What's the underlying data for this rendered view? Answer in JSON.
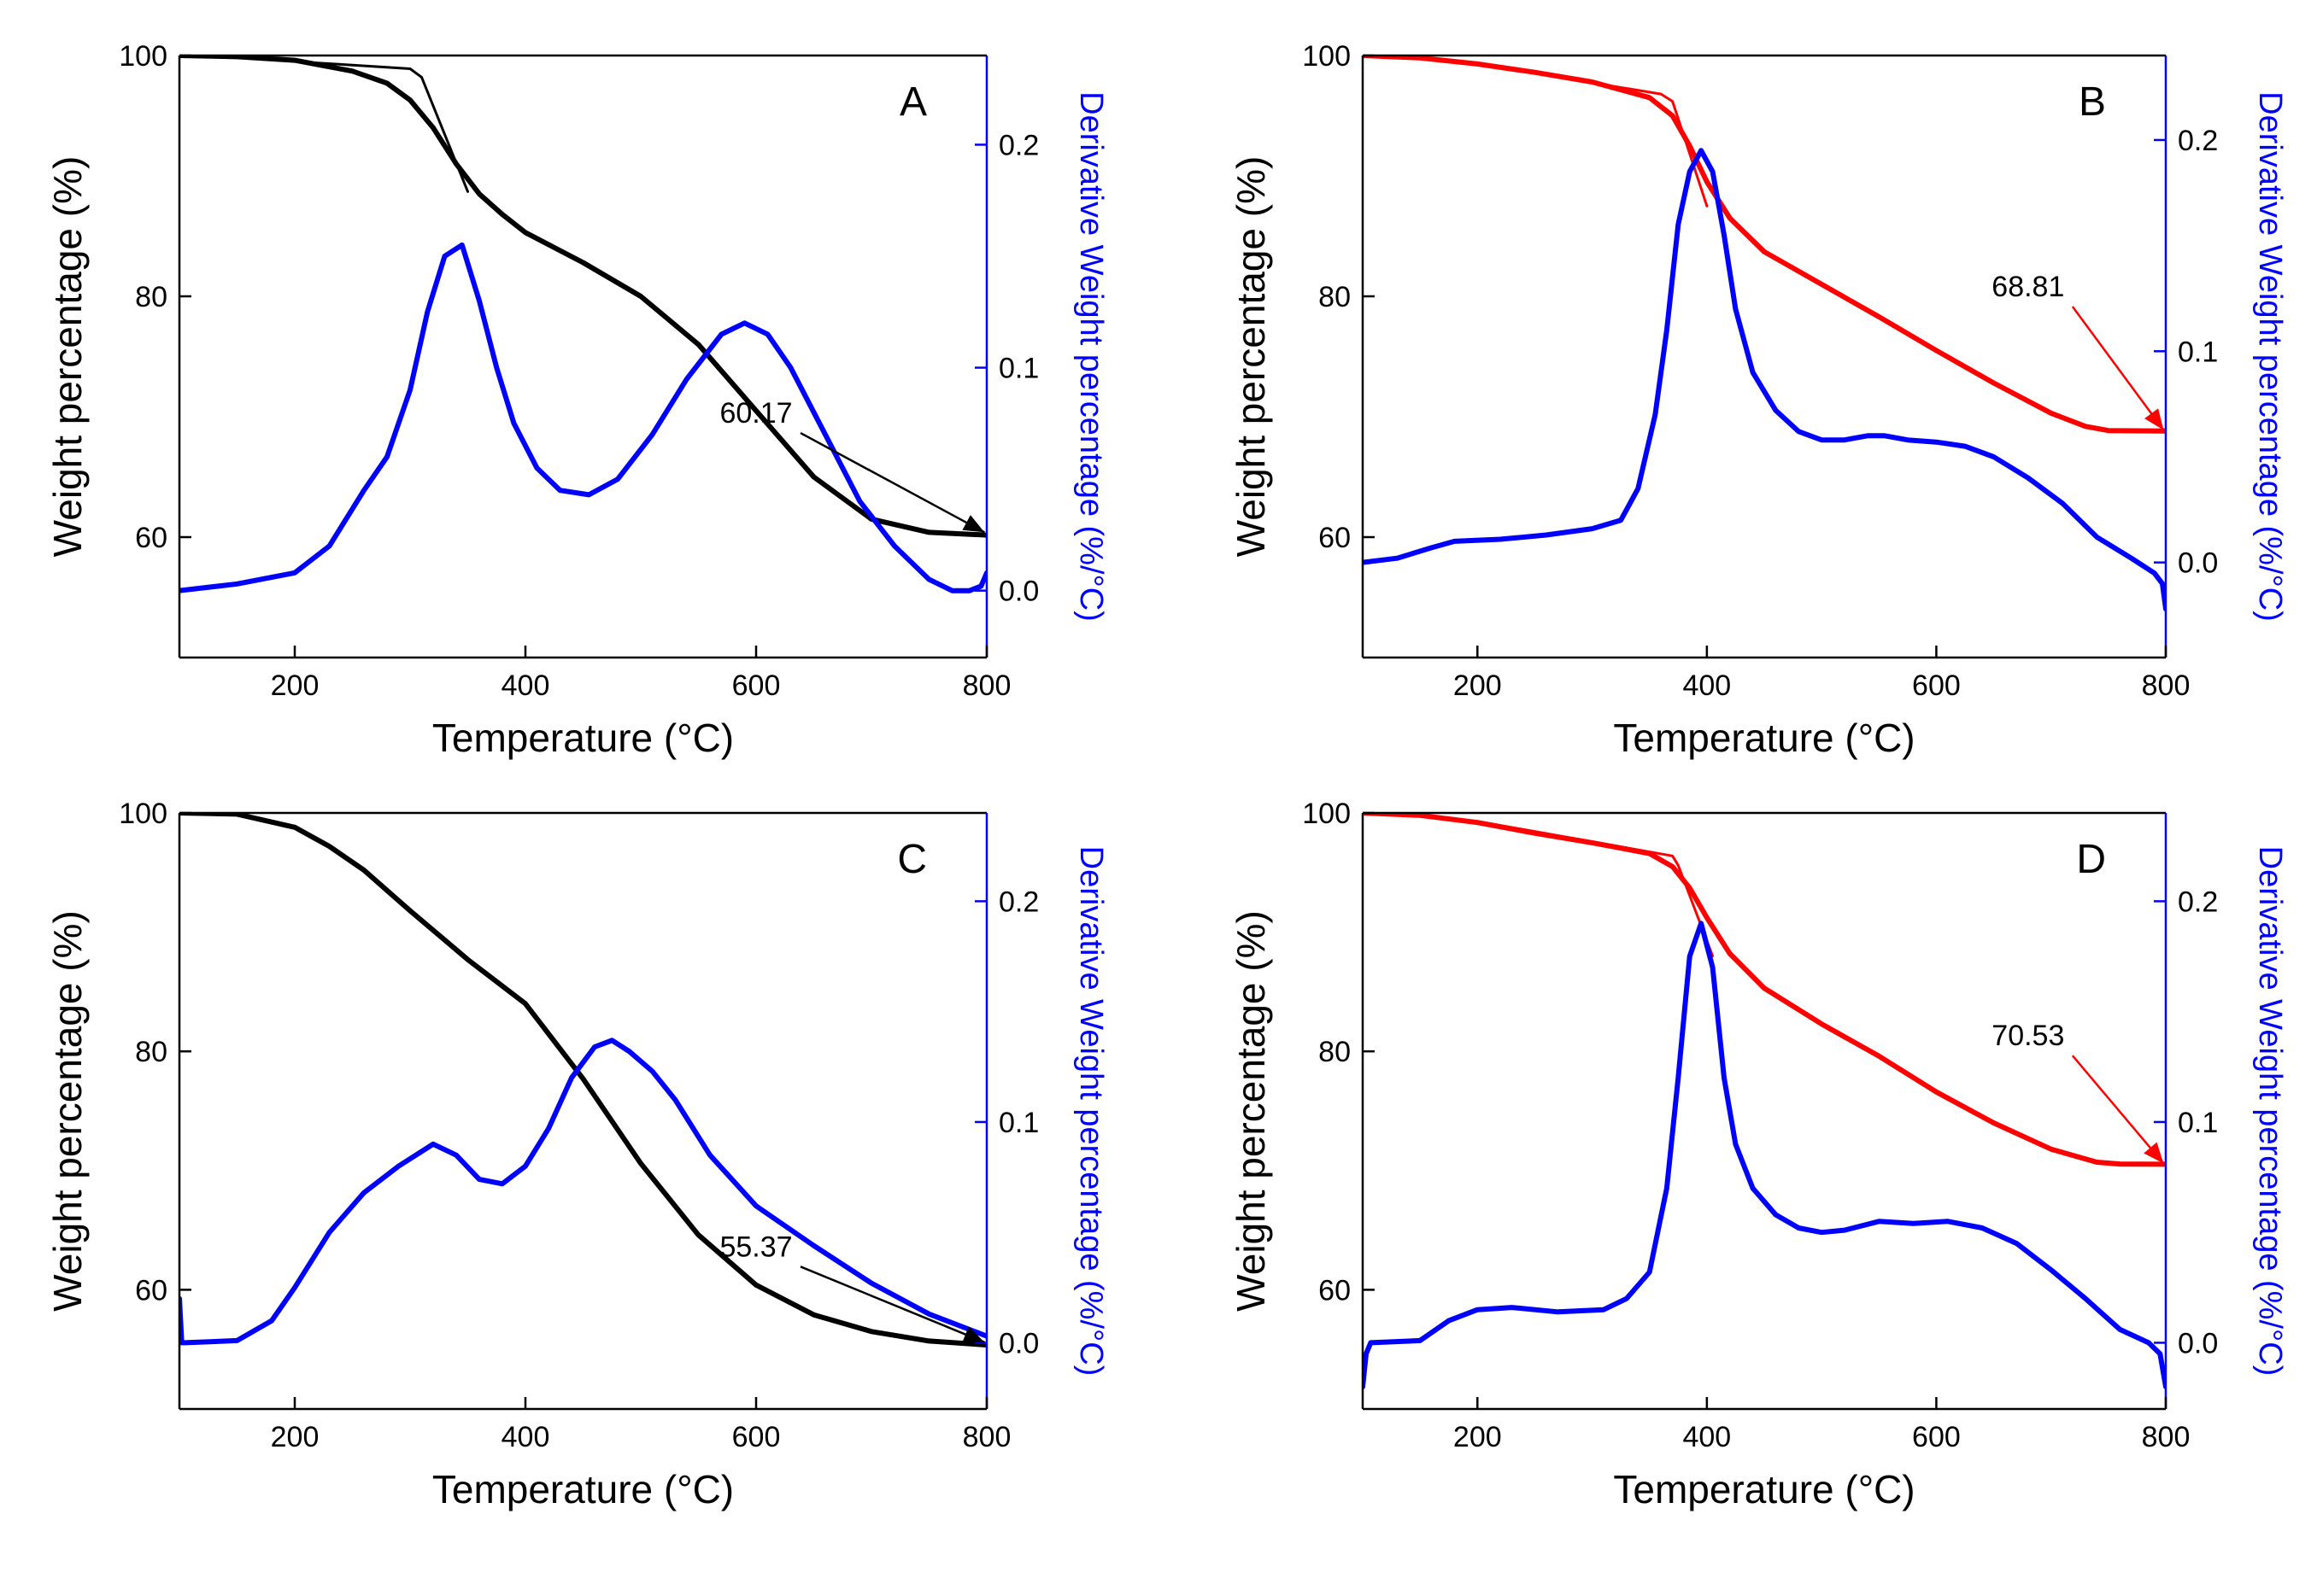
{
  "colors": {
    "weight_black": "#000000",
    "weight_red": "#ff0000",
    "derivative": "#0000ff",
    "axis": "#000000"
  },
  "chart_data": [
    {
      "panel": "A",
      "type": "line",
      "label": "A",
      "xlabel": "Temperature (°C)",
      "ylabel": "Weight percentage (%)",
      "y2label": "Derivative Weight percentage (%/°C)",
      "xlim": [
        100,
        800
      ],
      "ylim": [
        50,
        100
      ],
      "y2lim": [
        -0.03,
        0.24
      ],
      "xticks": [
        "200",
        "400",
        "600",
        "800"
      ],
      "yticks": [
        "60",
        "80",
        "100"
      ],
      "y2ticks": [
        "0.0",
        "0.1",
        "0.2"
      ],
      "xtick_values": [
        200,
        400,
        600,
        800
      ],
      "ytick_values": [
        60,
        80,
        100
      ],
      "y2tick_values": [
        0,
        0.1,
        0.2
      ],
      "weight_color": "#000000",
      "series": [
        {
          "name": "Weight",
          "axis": "left",
          "color": "#000000",
          "x": [
            100,
            150,
            200,
            250,
            280,
            300,
            320,
            340,
            360,
            380,
            400,
            450,
            500,
            550,
            600,
            650,
            700,
            750,
            800
          ],
          "y": [
            100,
            99.9,
            99.6,
            98.7,
            97.7,
            96.3,
            94,
            91,
            88.5,
            86.8,
            85.3,
            82.8,
            80,
            76,
            70.5,
            65,
            61.5,
            60.4,
            60.17
          ]
        },
        {
          "name": "Onset tangent",
          "axis": "left",
          "color": "#000000",
          "x": [
            200,
            300,
            310,
            350
          ],
          "y": [
            99.5,
            98.9,
            98.2,
            88.7
          ]
        },
        {
          "name": "Derivative",
          "axis": "right",
          "color": "#0000ff",
          "x": [
            100,
            150,
            200,
            230,
            260,
            280,
            300,
            315,
            330,
            345,
            360,
            375,
            390,
            410,
            430,
            455,
            480,
            510,
            540,
            570,
            590,
            610,
            630,
            660,
            690,
            720,
            750,
            770,
            785,
            795,
            800
          ],
          "y": [
            0.0,
            0.003,
            0.008,
            0.02,
            0.045,
            0.06,
            0.09,
            0.125,
            0.15,
            0.155,
            0.13,
            0.1,
            0.075,
            0.055,
            0.045,
            0.043,
            0.05,
            0.07,
            0.095,
            0.115,
            0.12,
            0.115,
            0.1,
            0.07,
            0.04,
            0.02,
            0.005,
            0.0,
            0.0,
            0.002,
            0.008
          ]
        }
      ],
      "annotation": {
        "text": "60.17",
        "tx": 600,
        "ty": 69.5,
        "ax": 798,
        "ay": 60.4,
        "color": "#000000"
      }
    },
    {
      "panel": "B",
      "type": "line",
      "label": "B",
      "xlabel": "Temperature (°C)",
      "ylabel": "Weight percentage (%)",
      "y2label": "Derivative Weight percentage (%/°C)",
      "xlim": [
        100,
        800
      ],
      "ylim": [
        50,
        100
      ],
      "y2lim": [
        -0.045,
        0.24
      ],
      "xticks": [
        "200",
        "400",
        "600",
        "800"
      ],
      "yticks": [
        "60",
        "80",
        "100"
      ],
      "y2ticks": [
        "0.0",
        "0.1",
        "0.2"
      ],
      "xtick_values": [
        200,
        400,
        600,
        800
      ],
      "ytick_values": [
        60,
        80,
        100
      ],
      "y2tick_values": [
        0,
        0.1,
        0.2
      ],
      "weight_color": "#ff0000",
      "series": [
        {
          "name": "Weight",
          "axis": "left",
          "color": "#ff0000",
          "x": [
            100,
            150,
            200,
            250,
            300,
            350,
            370,
            385,
            400,
            420,
            450,
            500,
            550,
            600,
            650,
            700,
            730,
            750,
            800
          ],
          "y": [
            100,
            99.8,
            99.3,
            98.6,
            97.8,
            96.5,
            95,
            92.5,
            89.5,
            86.5,
            83.7,
            81,
            78.3,
            75.5,
            72.8,
            70.3,
            69.2,
            68.85,
            68.81
          ]
        },
        {
          "name": "Onset tangent",
          "axis": "left",
          "color": "#ff0000",
          "x": [
            200,
            360,
            370,
            400
          ],
          "y": [
            99.3,
            96.8,
            96.2,
            87.5
          ]
        },
        {
          "name": "Derivative",
          "axis": "right",
          "color": "#0000ff",
          "x": [
            100,
            130,
            160,
            180,
            220,
            260,
            300,
            325,
            340,
            355,
            365,
            375,
            385,
            395,
            405,
            415,
            425,
            440,
            460,
            480,
            500,
            520,
            540,
            555,
            575,
            600,
            625,
            650,
            680,
            710,
            740,
            770,
            790,
            797,
            800
          ],
          "y": [
            0.0,
            0.002,
            0.007,
            0.01,
            0.011,
            0.013,
            0.016,
            0.02,
            0.035,
            0.07,
            0.11,
            0.16,
            0.185,
            0.195,
            0.185,
            0.155,
            0.12,
            0.09,
            0.072,
            0.062,
            0.058,
            0.058,
            0.06,
            0.06,
            0.058,
            0.057,
            0.055,
            0.05,
            0.04,
            0.028,
            0.012,
            0.002,
            -0.005,
            -0.01,
            -0.022
          ]
        }
      ],
      "annotation": {
        "text": "68.81",
        "tx": 680,
        "ty": 80,
        "ax": 798,
        "ay": 68.9,
        "color": "#ff0000"
      }
    },
    {
      "panel": "C",
      "type": "line",
      "label": "C",
      "xlabel": "Temperature (°C)",
      "ylabel": "Weight percentage (%)",
      "y2label": "Derivative Weight percentage (%/°C)",
      "xlim": [
        100,
        800
      ],
      "ylim": [
        50,
        100
      ],
      "y2lim": [
        -0.03,
        0.24
      ],
      "xticks": [
        "200",
        "400",
        "600",
        "800"
      ],
      "yticks": [
        "60",
        "80",
        "100"
      ],
      "y2ticks": [
        "0.0",
        "0.1",
        "0.2"
      ],
      "xtick_values": [
        200,
        400,
        600,
        800
      ],
      "ytick_values": [
        60,
        80,
        100
      ],
      "y2tick_values": [
        0,
        0.1,
        0.2
      ],
      "weight_color": "#000000",
      "series": [
        {
          "name": "Weight",
          "axis": "left",
          "color": "#000000",
          "x": [
            100,
            150,
            200,
            230,
            260,
            300,
            350,
            400,
            450,
            500,
            550,
            600,
            650,
            700,
            750,
            800
          ],
          "y": [
            100,
            99.9,
            98.8,
            97.2,
            95.2,
            91.8,
            87.7,
            84,
            77.7,
            70.6,
            64.6,
            60.4,
            57.9,
            56.5,
            55.7,
            55.37
          ]
        },
        {
          "name": "Derivative",
          "axis": "right",
          "color": "#0000ff",
          "x": [
            100,
            102,
            105,
            150,
            180,
            200,
            230,
            260,
            290,
            320,
            340,
            360,
            380,
            400,
            420,
            440,
            460,
            475,
            490,
            510,
            530,
            560,
            600,
            650,
            700,
            750,
            790,
            800
          ],
          "y": [
            0.02,
            0.0,
            0.0,
            0.001,
            0.01,
            0.025,
            0.05,
            0.068,
            0.08,
            0.09,
            0.085,
            0.074,
            0.072,
            0.08,
            0.097,
            0.12,
            0.134,
            0.137,
            0.132,
            0.123,
            0.11,
            0.085,
            0.062,
            0.044,
            0.027,
            0.013,
            0.005,
            0.003
          ]
        }
      ],
      "annotation": {
        "text": "55.37",
        "tx": 600,
        "ty": 62.8,
        "ax": 798,
        "ay": 55.6,
        "color": "#000000"
      }
    },
    {
      "panel": "D",
      "type": "line",
      "label": "D",
      "xlabel": "Temperature (°C)",
      "ylabel": "Weight percentage (%)",
      "y2label": "Derivative Weight percentage (%/°C)",
      "xlim": [
        100,
        800
      ],
      "ylim": [
        50,
        100
      ],
      "y2lim": [
        -0.03,
        0.24
      ],
      "xticks": [
        "200",
        "400",
        "600",
        "800"
      ],
      "yticks": [
        "60",
        "80",
        "100"
      ],
      "y2ticks": [
        "0.0",
        "0.1",
        "0.2"
      ],
      "xtick_values": [
        200,
        400,
        600,
        800
      ],
      "ytick_values": [
        60,
        80,
        100
      ],
      "y2tick_values": [
        0,
        0.1,
        0.2
      ],
      "weight_color": "#ff0000",
      "series": [
        {
          "name": "Weight",
          "axis": "left",
          "color": "#ff0000",
          "x": [
            100,
            150,
            200,
            250,
            300,
            350,
            370,
            385,
            400,
            420,
            450,
            500,
            550,
            600,
            650,
            700,
            740,
            760,
            800
          ],
          "y": [
            100,
            99.8,
            99.2,
            98.3,
            97.5,
            96.6,
            95.5,
            93.7,
            91.2,
            88.2,
            85.3,
            82.3,
            79.6,
            76.6,
            74,
            71.8,
            70.7,
            70.55,
            70.53
          ]
        },
        {
          "name": "Onset tangent",
          "axis": "left",
          "color": "#ff0000",
          "x": [
            200,
            370,
            375,
            405
          ],
          "y": [
            99.3,
            96.4,
            95.6,
            88
          ]
        },
        {
          "name": "Derivative",
          "axis": "right",
          "color": "#0000ff",
          "x": [
            100,
            103,
            107,
            150,
            175,
            200,
            230,
            270,
            310,
            330,
            350,
            365,
            375,
            385,
            395,
            405,
            415,
            425,
            440,
            460,
            480,
            500,
            520,
            550,
            580,
            610,
            640,
            670,
            700,
            730,
            760,
            785,
            795,
            800
          ],
          "y": [
            -0.02,
            -0.005,
            0.0,
            0.001,
            0.01,
            0.015,
            0.016,
            0.014,
            0.015,
            0.02,
            0.032,
            0.07,
            0.12,
            0.175,
            0.19,
            0.17,
            0.12,
            0.09,
            0.07,
            0.058,
            0.052,
            0.05,
            0.051,
            0.055,
            0.054,
            0.055,
            0.052,
            0.045,
            0.033,
            0.02,
            0.006,
            0.0,
            -0.005,
            -0.02
          ]
        }
      ],
      "annotation": {
        "text": "70.53",
        "tx": 680,
        "ty": 80.5,
        "ax": 798,
        "ay": 70.6,
        "color": "#ff0000"
      }
    }
  ]
}
